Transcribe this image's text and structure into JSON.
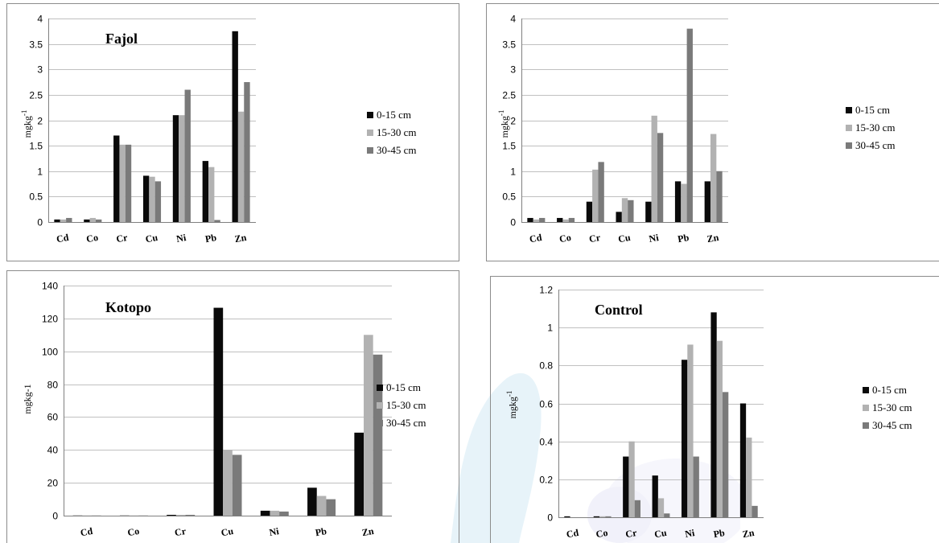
{
  "colors": {
    "s0": "#0a0a0a",
    "s1": "#b2b2b2",
    "s2": "#7a7a7a",
    "grid": "#c0c0c0",
    "frame": "#8c8c8c"
  },
  "chart_data": [
    {
      "type": "bar",
      "title": "Fajol",
      "ylabel": "mgkg",
      "ylabel_sup": "-1",
      "ylim": [
        0,
        4
      ],
      "yticks": [
        "0",
        "0.5",
        "1",
        "1.5",
        "2",
        "2.5",
        "3",
        "3.5",
        "4"
      ],
      "yticks_values": [
        0,
        0.5,
        1,
        1.5,
        2,
        2.5,
        3,
        3.5,
        4
      ],
      "categories": [
        "Cd",
        "Co",
        "Cr",
        "Cu",
        "Ni",
        "Pb",
        "Zn"
      ],
      "grid": true,
      "legend_position": "right",
      "series": [
        {
          "name": "0-15 cm",
          "values": [
            0.05,
            0.05,
            1.7,
            0.91,
            2.1,
            1.2,
            3.75
          ]
        },
        {
          "name": "15-30 cm",
          "values": [
            0.05,
            0.08,
            1.52,
            0.89,
            2.1,
            1.08,
            2.17
          ]
        },
        {
          "name": "30-45 cm",
          "values": [
            0.08,
            0.05,
            1.52,
            0.8,
            2.6,
            0.04,
            2.75
          ]
        }
      ]
    },
    {
      "type": "bar",
      "title": "",
      "ylabel": "mgkg",
      "ylabel_sup": "-1",
      "ylim": [
        0,
        4
      ],
      "yticks": [
        "0",
        "0.5",
        "1",
        "1.5",
        "2",
        "2.5",
        "3",
        "3.5",
        "4"
      ],
      "yticks_values": [
        0,
        0.5,
        1,
        1.5,
        2,
        2.5,
        3,
        3.5,
        4
      ],
      "categories": [
        "Cd",
        "Co",
        "Cr",
        "Cu",
        "Ni",
        "Pb",
        "Zn"
      ],
      "grid": true,
      "legend_position": "right",
      "series": [
        {
          "name": "0-15 cm",
          "values": [
            0.08,
            0.08,
            0.4,
            0.2,
            0.4,
            0.8,
            0.8
          ]
        },
        {
          "name": "15-30 cm",
          "values": [
            0.05,
            0.05,
            1.03,
            0.47,
            2.09,
            0.75,
            1.73
          ]
        },
        {
          "name": "30-45 cm",
          "values": [
            0.08,
            0.08,
            1.18,
            0.43,
            1.75,
            3.8,
            1.0
          ]
        }
      ]
    },
    {
      "type": "bar",
      "title": "Kotopo",
      "ylabel": "mgkg-1",
      "ylabel_sup": "",
      "ylim": [
        0,
        140
      ],
      "yticks": [
        "0",
        "20",
        "40",
        "60",
        "80",
        "100",
        "120",
        "140"
      ],
      "yticks_values": [
        0,
        20,
        40,
        60,
        80,
        100,
        120,
        140
      ],
      "categories": [
        "Cd",
        "Co",
        "Cr",
        "Cu",
        "Ni",
        "Pb",
        "Zn"
      ],
      "grid": true,
      "legend_position": "right",
      "series": [
        {
          "name": "0-15 cm",
          "values": [
            0.1,
            0.1,
            0.5,
            126.5,
            3,
            17,
            50.5
          ]
        },
        {
          "name": "15-30 cm",
          "values": [
            0.1,
            0.1,
            0.5,
            40,
            3,
            12,
            110
          ]
        },
        {
          "name": "30-45 cm",
          "values": [
            0.1,
            0.1,
            0.5,
            37,
            2.5,
            10,
            98
          ]
        }
      ]
    },
    {
      "type": "bar",
      "title": "Control",
      "ylabel": "mgkg",
      "ylabel_sup": "-1",
      "ylim": [
        0,
        1.2
      ],
      "yticks": [
        "0",
        "0.2",
        "0.4",
        "0.6",
        "0.8",
        "1",
        "1.2"
      ],
      "yticks_values": [
        0,
        0.2,
        0.4,
        0.6,
        0.8,
        1,
        1.2
      ],
      "categories": [
        "Cd",
        "Co",
        "Cr",
        "Cu",
        "Ni",
        "Pb",
        "Zn"
      ],
      "grid": true,
      "legend_position": "right",
      "series": [
        {
          "name": "0-15 cm",
          "values": [
            0.005,
            0.005,
            0.32,
            0.22,
            0.83,
            1.08,
            0.6
          ]
        },
        {
          "name": "15-30 cm",
          "values": [
            0.0,
            0.005,
            0.4,
            0.1,
            0.91,
            0.93,
            0.42
          ]
        },
        {
          "name": "30-45 cm",
          "values": [
            0.0,
            0.005,
            0.09,
            0.02,
            0.32,
            0.66,
            0.06
          ]
        }
      ]
    }
  ]
}
